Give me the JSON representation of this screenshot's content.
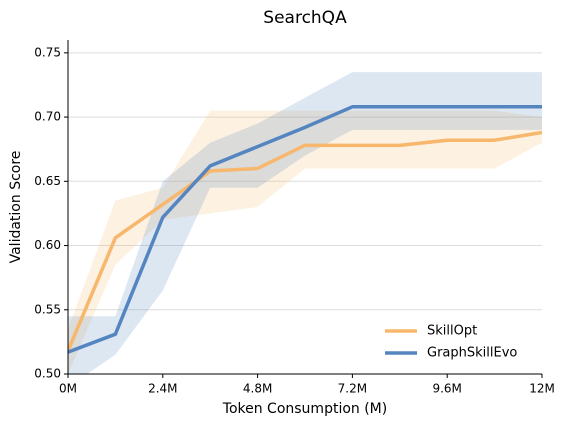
{
  "chart_data": {
    "type": "line",
    "title": "SearchQA",
    "x_label": "Token Consumption (M)",
    "y_label": "Validation Score",
    "x": [
      0,
      1.2,
      2.4,
      3.6,
      4.8,
      6.0,
      7.2,
      8.4,
      9.6,
      10.8,
      12
    ],
    "series": [
      {
        "name": "SkillOpt",
        "color": "#f7b76c",
        "values": [
          0.518,
          0.606,
          0.632,
          0.658,
          0.66,
          0.678,
          0.678,
          0.678,
          0.682,
          0.682,
          0.688
        ],
        "lower": [
          0.5,
          0.585,
          0.62,
          0.625,
          0.63,
          0.66,
          0.66,
          0.66,
          0.66,
          0.66,
          0.68
        ],
        "upper": [
          0.535,
          0.635,
          0.645,
          0.705,
          0.705,
          0.705,
          0.705,
          0.705,
          0.705,
          0.705,
          0.7
        ]
      },
      {
        "name": "GraphSkillEvo",
        "color": "#5585c0",
        "values": [
          0.517,
          0.531,
          0.622,
          0.662,
          0.677,
          0.692,
          0.708,
          0.708,
          0.708,
          0.708,
          0.708
        ],
        "lower": [
          0.49,
          0.515,
          0.565,
          0.645,
          0.645,
          0.67,
          0.69,
          0.69,
          0.69,
          0.69,
          0.69
        ],
        "upper": [
          0.545,
          0.545,
          0.65,
          0.68,
          0.695,
          0.715,
          0.735,
          0.735,
          0.735,
          0.735,
          0.735
        ]
      }
    ],
    "xlim": [
      0,
      12
    ],
    "xticks": [
      {
        "value": 0,
        "label": "0M"
      },
      {
        "value": 2.4,
        "label": "2.4M"
      },
      {
        "value": 4.8,
        "label": "4.8M"
      },
      {
        "value": 7.2,
        "label": "7.2M"
      },
      {
        "value": 9.6,
        "label": "9.6M"
      },
      {
        "value": 12,
        "label": "12M"
      }
    ],
    "ylim": [
      0.5,
      0.76
    ],
    "yticks": [
      {
        "value": 0.5,
        "label": "0.50"
      },
      0.55,
      {
        "value": 0.6,
        "label": "0.60"
      },
      0.65,
      {
        "value": 0.7,
        "label": "0.70"
      },
      0.75
    ],
    "grid": true,
    "legend": "lower right"
  }
}
